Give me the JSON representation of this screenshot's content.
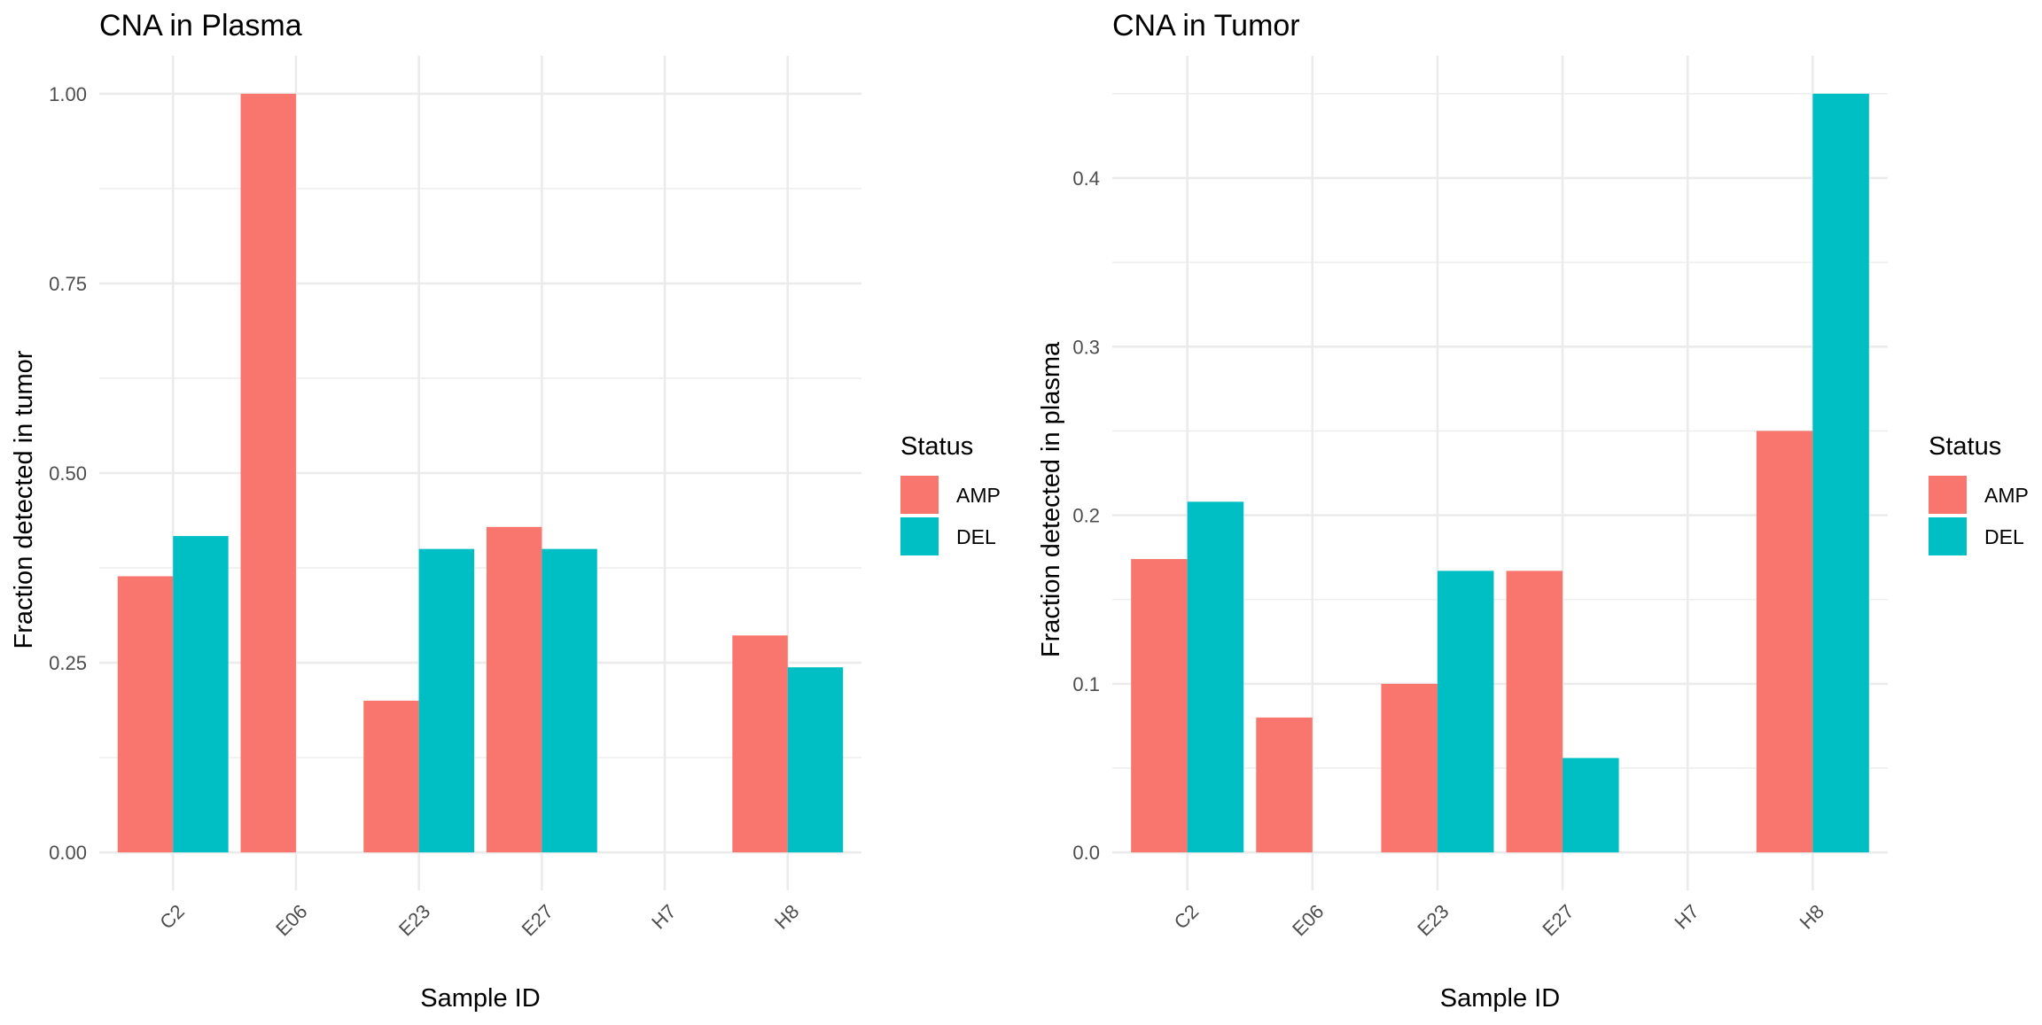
{
  "chart_data": [
    {
      "type": "bar",
      "title": "CNA in Plasma",
      "xlabel": "Sample ID",
      "ylabel": "Fraction detected in tumor",
      "categories": [
        "C2",
        "E06",
        "E23",
        "E27",
        "H7",
        "H8"
      ],
      "series": [
        {
          "name": "AMP",
          "color": "#F8766D",
          "values": [
            0.364,
            1.0,
            0.2,
            0.429,
            null,
            0.286
          ]
        },
        {
          "name": "DEL",
          "color": "#00BFC4",
          "values": [
            0.417,
            null,
            0.4,
            0.4,
            null,
            0.244
          ]
        }
      ],
      "ylim": [
        0,
        1.0
      ],
      "yticks": [
        0,
        0.25,
        0.5,
        0.75,
        1.0
      ],
      "ytick_labels": [
        "0.00",
        "0.25",
        "0.50",
        "0.75",
        "1.00"
      ],
      "grid": true,
      "legend": {
        "title": "Status",
        "placement": "right",
        "entries": [
          "AMP",
          "DEL"
        ]
      }
    },
    {
      "type": "bar",
      "title": "CNA in Tumor",
      "xlabel": "Sample ID",
      "ylabel": "Fraction detected in plasma",
      "categories": [
        "C2",
        "E06",
        "E23",
        "E27",
        "H7",
        "H8"
      ],
      "series": [
        {
          "name": "AMP",
          "color": "#F8766D",
          "values": [
            0.174,
            0.08,
            0.1,
            0.167,
            null,
            0.25
          ]
        },
        {
          "name": "DEL",
          "color": "#00BFC4",
          "values": [
            0.208,
            null,
            0.167,
            0.056,
            null,
            0.45
          ]
        }
      ],
      "ylim": [
        0,
        0.45
      ],
      "yticks": [
        0,
        0.1,
        0.2,
        0.3,
        0.4
      ],
      "ytick_labels": [
        "0.0",
        "0.1",
        "0.2",
        "0.3",
        "0.4"
      ],
      "grid": true,
      "legend": {
        "title": "Status",
        "placement": "right",
        "entries": [
          "AMP",
          "DEL"
        ]
      }
    }
  ]
}
